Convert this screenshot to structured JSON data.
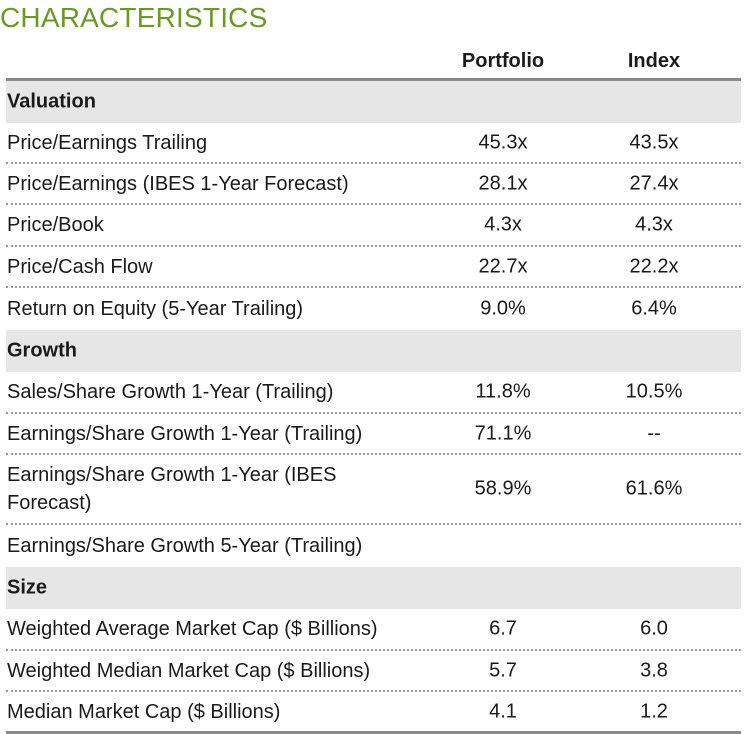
{
  "title": "CHARACTERISTICS",
  "columns": {
    "portfolio": "Portfolio",
    "index": "Index"
  },
  "sections": [
    {
      "name": "Valuation",
      "rows": [
        {
          "label": "Price/Earnings Trailing",
          "portfolio": "45.3x",
          "index": "43.5x"
        },
        {
          "label": "Price/Earnings (IBES 1-Year Forecast)",
          "portfolio": "28.1x",
          "index": "27.4x"
        },
        {
          "label": "Price/Book",
          "portfolio": "4.3x",
          "index": "4.3x"
        },
        {
          "label": "Price/Cash Flow",
          "portfolio": "22.7x",
          "index": "22.2x"
        },
        {
          "label": "Return on Equity (5-Year Trailing)",
          "portfolio": "9.0%",
          "index": "6.4%"
        }
      ]
    },
    {
      "name": "Growth",
      "rows": [
        {
          "label": "Sales/Share Growth 1-Year (Trailing)",
          "portfolio": "11.8%",
          "index": "10.5%"
        },
        {
          "label": "Earnings/Share Growth 1-Year (Trailing)",
          "portfolio": "71.1%",
          "index": "--"
        },
        {
          "label": "Earnings/Share Growth 1-Year (IBES Forecast)",
          "portfolio": "58.9%",
          "index": "61.6%"
        },
        {
          "label": "Earnings/Share Growth 5-Year (Trailing)",
          "portfolio": "",
          "index": ""
        }
      ]
    },
    {
      "name": "Size",
      "rows": [
        {
          "label": "Weighted Average Market Cap ($ Billions)",
          "portfolio": "6.7",
          "index": "6.0"
        },
        {
          "label": "Weighted Median Market Cap ($ Billions)",
          "portfolio": "5.7",
          "index": "3.8"
        },
        {
          "label": "Median Market Cap ($ Billions)",
          "portfolio": "4.1",
          "index": "1.2"
        }
      ]
    }
  ]
}
